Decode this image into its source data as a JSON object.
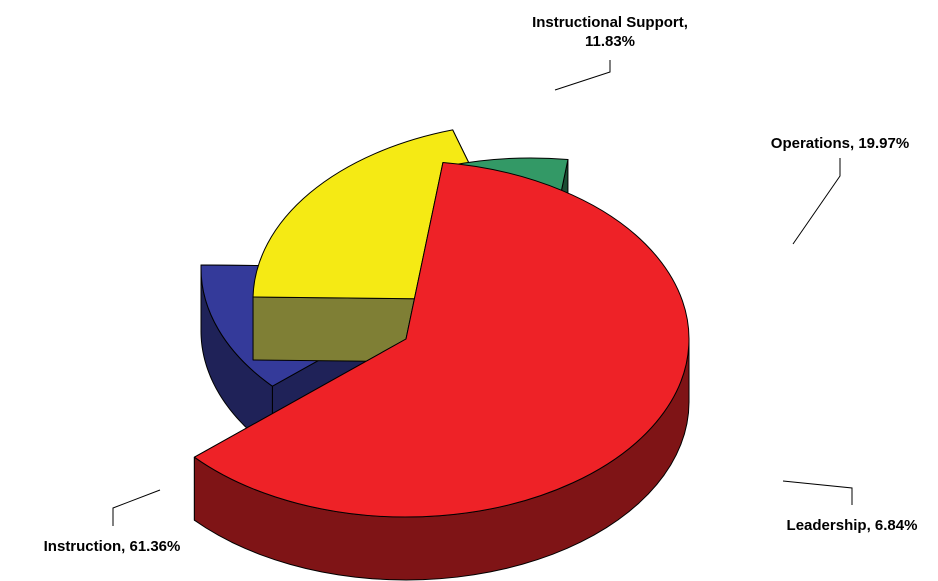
{
  "chart_data": {
    "type": "pie",
    "title": "",
    "series": [
      {
        "name": "Instruction",
        "value": 61.36,
        "color": "#EE2227",
        "side_color": "#7F1416",
        "label_lines": [
          "Instruction, 61.36%"
        ]
      },
      {
        "name": "Instructional Support",
        "value": 11.83,
        "color": "#343A9A",
        "side_color": "#1F2258",
        "label_lines": [
          "Instructional Support,",
          "11.83%"
        ]
      },
      {
        "name": "Operations",
        "value": 19.97,
        "color": "#F5EA14",
        "side_color": "#7F7F35",
        "label_lines": [
          "Operations, 19.97%"
        ]
      },
      {
        "name": "Leadership",
        "value": 6.84,
        "color": "#339966",
        "side_color": "#1B4D33",
        "label_lines": [
          "Leadership, 6.84%"
        ]
      }
    ],
    "legend": "none",
    "style": "3d-exploded"
  }
}
